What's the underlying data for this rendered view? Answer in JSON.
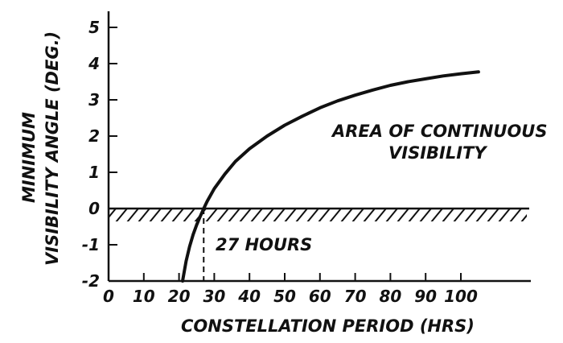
{
  "chart_data": {
    "type": "line",
    "title": "",
    "xlabel": "CONSTELLATION PERIOD (HRS)",
    "ylabel_lines": [
      "MINIMUM",
      "VISIBILITY ANGLE (DEG.)"
    ],
    "x_ticks": [
      "0",
      "10",
      "20",
      "30",
      "40",
      "50",
      "60",
      "70",
      "80",
      "90",
      "100"
    ],
    "y_ticks": [
      "5",
      "4",
      "3",
      "2",
      "1",
      "0",
      "-1",
      "-2"
    ],
    "xlim": [
      0,
      120
    ],
    "ylim": [
      -2,
      5.5
    ],
    "grid": false,
    "series": [
      {
        "x": [
          21,
          22,
          23,
          24,
          25,
          26,
          27,
          28,
          30,
          33,
          36,
          40,
          45,
          50,
          55,
          60,
          65,
          70,
          75,
          80,
          85,
          90,
          95,
          100,
          105
        ],
        "y": [
          -2.0,
          -1.45,
          -1.05,
          -0.72,
          -0.45,
          -0.22,
          0.0,
          0.2,
          0.55,
          0.95,
          1.3,
          1.65,
          2.0,
          2.3,
          2.55,
          2.78,
          2.97,
          3.13,
          3.27,
          3.4,
          3.5,
          3.58,
          3.66,
          3.72,
          3.77
        ]
      }
    ],
    "annotations": {
      "region_line1": "AREA OF CONTINUOUS",
      "region_line2": "VISIBILITY",
      "crossing_label": "27 HOURS",
      "crossing_x": 27
    }
  }
}
